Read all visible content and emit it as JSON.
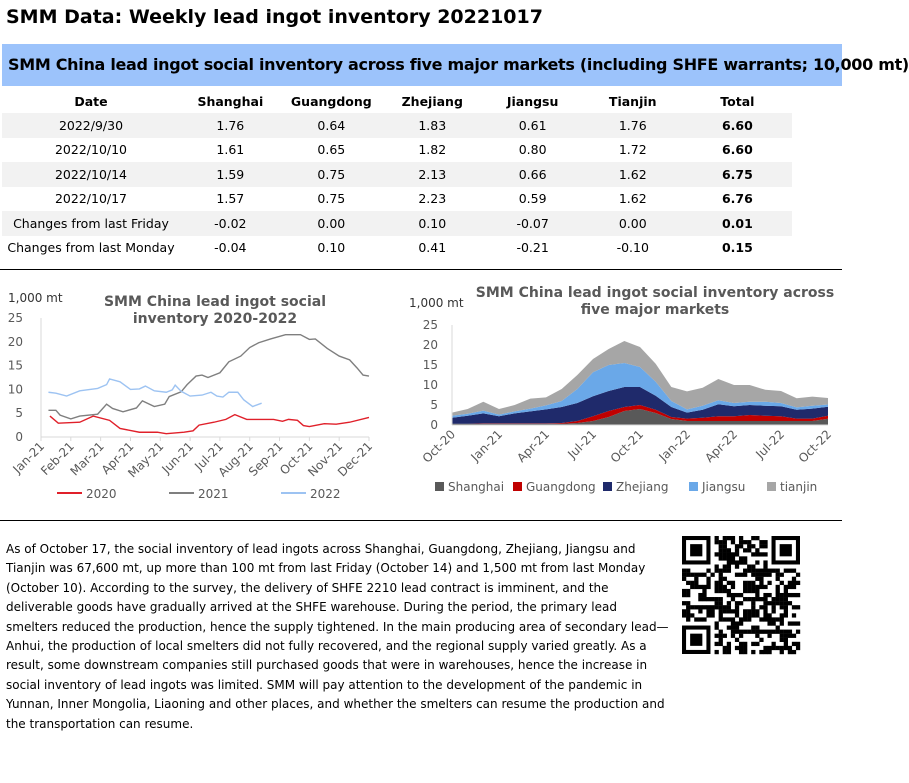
{
  "title": "SMM Data: Weekly lead ingot inventory 20221017",
  "table": {
    "caption": "SMM China lead ingot social inventory across five major markets (including SHFE warrants; 10,000 mt)",
    "headers": [
      "Date",
      "Shanghai",
      "Guangdong",
      "Zhejiang",
      "Jiangsu",
      "Tianjin",
      "Total"
    ],
    "rows": [
      [
        "2022/9/30",
        "1.76",
        "0.64",
        "1.83",
        "0.61",
        "1.76",
        "6.60"
      ],
      [
        "2022/10/10",
        "1.61",
        "0.65",
        "1.82",
        "0.80",
        "1.72",
        "6.60"
      ],
      [
        "2022/10/14",
        "1.59",
        "0.75",
        "2.13",
        "0.66",
        "1.62",
        "6.75"
      ],
      [
        "2022/10/17",
        "1.57",
        "0.75",
        "2.23",
        "0.59",
        "1.62",
        "6.76"
      ],
      [
        "Changes from last Friday",
        "-0.02",
        "0.00",
        "0.10",
        "-0.07",
        "0.00",
        "0.01"
      ],
      [
        "Changes from last Monday",
        "-0.04",
        "0.10",
        "0.41",
        "-0.21",
        "-0.10",
        "0.15"
      ]
    ]
  },
  "chart_data": [
    {
      "type": "line",
      "title": "SMM China lead ingot social inventory 2020-2022",
      "ylabel": "1,000 mt",
      "ylim": [
        0,
        25
      ],
      "yticks": [
        "0",
        "5",
        "10",
        "15",
        "20",
        "25"
      ],
      "xticks": [
        "Jan-21",
        "Feb-21",
        "Mar-21",
        "Apr-21",
        "May-21",
        "Jun-21",
        "Jul-21",
        "Aug-21",
        "Sep-21",
        "Oct-21",
        "Nov-21",
        "Dec-21"
      ],
      "legend": "bottom",
      "series": [
        {
          "name": "2020",
          "color": "#e0202a",
          "points": [
            [
              0.3,
              4.4
            ],
            [
              0.58,
              2.9
            ],
            [
              1.3,
              3.1
            ],
            [
              1.75,
              4.4
            ],
            [
              2.3,
              3.5
            ],
            [
              2.65,
              1.8
            ],
            [
              3.3,
              1.0
            ],
            [
              3.9,
              1.0
            ],
            [
              4.2,
              0.7
            ],
            [
              4.8,
              1.0
            ],
            [
              5.1,
              1.3
            ],
            [
              5.3,
              2.5
            ],
            [
              5.8,
              3.1
            ],
            [
              6.2,
              3.7
            ],
            [
              6.5,
              4.7
            ],
            [
              6.9,
              3.7
            ],
            [
              7.8,
              3.7
            ],
            [
              8.1,
              3.3
            ],
            [
              8.3,
              3.7
            ],
            [
              8.6,
              3.5
            ],
            [
              8.8,
              2.4
            ],
            [
              9.0,
              2.2
            ],
            [
              9.5,
              2.8
            ],
            [
              9.9,
              2.7
            ],
            [
              10.35,
              3.1
            ],
            [
              11.0,
              4.1
            ]
          ]
        },
        {
          "name": "2021",
          "color": "#7f7f7f",
          "points": [
            [
              0.25,
              5.6
            ],
            [
              0.5,
              5.6
            ],
            [
              0.64,
              4.6
            ],
            [
              1.0,
              3.8
            ],
            [
              1.3,
              4.4
            ],
            [
              1.9,
              4.8
            ],
            [
              2.2,
              6.9
            ],
            [
              2.4,
              6.0
            ],
            [
              2.75,
              5.3
            ],
            [
              3.2,
              6.1
            ],
            [
              3.4,
              7.6
            ],
            [
              3.8,
              6.4
            ],
            [
              4.15,
              6.9
            ],
            [
              4.3,
              8.5
            ],
            [
              4.7,
              9.5
            ],
            [
              4.9,
              11.0
            ],
            [
              5.2,
              12.8
            ],
            [
              5.4,
              13.0
            ],
            [
              5.6,
              12.5
            ],
            [
              6.0,
              13.5
            ],
            [
              6.3,
              15.8
            ],
            [
              6.7,
              17.0
            ],
            [
              7.0,
              18.8
            ],
            [
              7.3,
              19.8
            ],
            [
              7.7,
              20.6
            ],
            [
              8.2,
              21.5
            ],
            [
              8.7,
              21.5
            ],
            [
              9.0,
              20.5
            ],
            [
              9.2,
              20.6
            ],
            [
              9.6,
              18.6
            ],
            [
              10.0,
              17.0
            ],
            [
              10.35,
              16.2
            ],
            [
              10.6,
              14.5
            ],
            [
              10.8,
              13.0
            ],
            [
              11.0,
              12.8
            ]
          ]
        },
        {
          "name": "2022",
          "color": "#9dc3f2",
          "points": [
            [
              0.25,
              9.4
            ],
            [
              0.5,
              9.2
            ],
            [
              0.86,
              8.6
            ],
            [
              1.3,
              9.7
            ],
            [
              1.9,
              10.2
            ],
            [
              2.2,
              11.0
            ],
            [
              2.3,
              12.2
            ],
            [
              2.65,
              11.6
            ],
            [
              3.0,
              10.0
            ],
            [
              3.3,
              10.1
            ],
            [
              3.5,
              10.7
            ],
            [
              3.8,
              9.7
            ],
            [
              4.2,
              9.4
            ],
            [
              4.4,
              9.9
            ],
            [
              4.5,
              10.9
            ],
            [
              4.7,
              9.6
            ],
            [
              5.0,
              8.6
            ],
            [
              5.4,
              8.8
            ],
            [
              5.7,
              9.4
            ],
            [
              5.9,
              8.6
            ],
            [
              6.1,
              8.4
            ],
            [
              6.3,
              9.4
            ],
            [
              6.6,
              9.4
            ],
            [
              6.8,
              7.8
            ],
            [
              7.1,
              6.4
            ],
            [
              7.4,
              7.1
            ]
          ]
        }
      ]
    },
    {
      "type": "area",
      "stacked": true,
      "title": "SMM China lead ingot social inventory across five major markets",
      "ylabel": "1,000 mt",
      "ylim": [
        0,
        25
      ],
      "yticks": [
        "0",
        "5",
        "10",
        "15",
        "20",
        "25"
      ],
      "xticks": [
        "Oct-20",
        "Jan-21",
        "Apr-21",
        "Jul-21",
        "Oct-21",
        "Jan-22",
        "Apr-22",
        "Jul-22",
        "Oct-22"
      ],
      "x": [
        "Oct-20",
        "Nov-20",
        "Dec-20",
        "Jan-21",
        "Feb-21",
        "Mar-21",
        "Apr-21",
        "May-21",
        "Jun-21",
        "Jul-21",
        "Aug-21",
        "Sep-21",
        "Oct-21",
        "Nov-21",
        "Dec-21",
        "Jan-22",
        "Feb-22",
        "Mar-22",
        "Apr-22",
        "May-22",
        "Jun-22",
        "Jul-22",
        "Aug-22",
        "Sep-22",
        "Oct-22"
      ],
      "legend": "bottom",
      "series": [
        {
          "name": "Shanghai",
          "color": "#595959",
          "values": [
            0.3,
            0.3,
            0.3,
            0.3,
            0.3,
            0.3,
            0.3,
            0.3,
            0.5,
            1,
            2,
            3.5,
            4,
            3,
            1.5,
            1,
            1,
            1,
            1,
            1,
            1,
            1,
            1,
            1,
            1.57
          ]
        },
        {
          "name": "Guangdong",
          "color": "#c00000",
          "values": [
            0,
            0,
            0.1,
            0.1,
            0.1,
            0.1,
            0.1,
            0.2,
            0.5,
            1.2,
            1.5,
            1,
            1,
            0.8,
            0.5,
            0.6,
            0.8,
            1.2,
            1.2,
            1.5,
            1.3,
            1.2,
            0.6,
            0.6,
            0.75
          ]
        },
        {
          "name": "Zhejiang",
          "color": "#1f2a6b",
          "values": [
            1.5,
            2,
            2.5,
            1.8,
            2.5,
            3,
            3.5,
            4,
            4.5,
            5,
            5,
            5,
            4.5,
            3.5,
            2.5,
            1.5,
            2,
            3,
            2.5,
            2.5,
            2.5,
            2.5,
            2.2,
            2.5,
            2.23
          ]
        },
        {
          "name": "Jiangsu",
          "color": "#6aa8e8",
          "values": [
            0.5,
            0.5,
            0.7,
            0.4,
            0.5,
            0.7,
            1,
            1.5,
            3.5,
            6,
            6.5,
            6,
            5,
            3.5,
            1.5,
            0.8,
            1,
            1,
            0.8,
            0.8,
            1,
            0.8,
            0.6,
            0.7,
            0.59
          ]
        },
        {
          "name": "tianjin",
          "color": "#a6a6a6",
          "values": [
            0.8,
            1.2,
            2.2,
            1.4,
            1.6,
            2.5,
            2,
            3,
            3.5,
            3.3,
            4,
            5.5,
            5,
            4.5,
            3.5,
            4.5,
            4.5,
            5.3,
            4.5,
            4.2,
            3,
            3,
            2.3,
            2.3,
            1.62
          ]
        }
      ]
    }
  ],
  "body_text": "As of October 17, the social inventory of lead ingots across Shanghai, Guangdong, Zhejiang, Jiangsu and Tianjin was 67,600 mt, up more than 100 mt from last Friday (October 14) and 1,500 mt from last Monday (October 10). According to the survey, the delivery of SHFE 2210 lead contract is imminent, and the deliverable goods have gradually arrived at the SHFE warehouse. During the period, the primary lead smelters reduced the production, hence the supply tightened. In the main producing area of secondary lead—Anhui, the production of local smelters did not fully recovered, and the regional supply varied greatly. As a result, some downstream companies still purchased goods that were in warehouses, hence the increase in social inventory of lead ingots was limited. SMM will pay attention to the development of the pandemic in Yunnan, Inner Mongolia, Liaoning and other places, and whether the smelters can resume the production and the transportation can resume.",
  "qr_icon": "qr-code-icon"
}
